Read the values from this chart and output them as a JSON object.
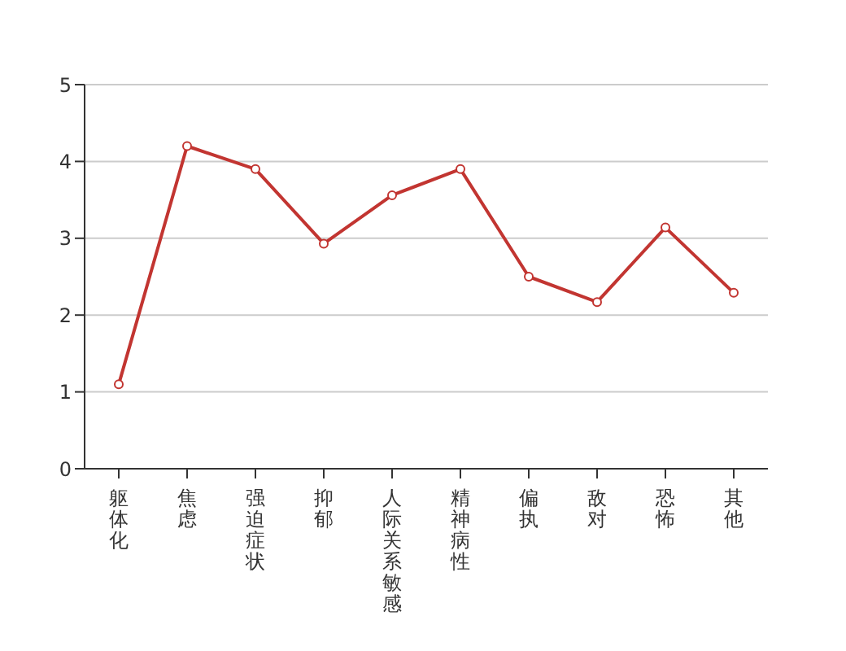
{
  "chart_data": {
    "type": "line",
    "categories": [
      "躯体化",
      "焦虑",
      "强迫症状",
      "抑郁",
      "人际关系敏感",
      "精神病性",
      "偏执",
      "敌对",
      "恐怖",
      "其他"
    ],
    "series": [
      {
        "color": "#c23531",
        "values": [
          1.1,
          4.2,
          3.9,
          2.93,
          3.56,
          3.9,
          2.5,
          2.17,
          3.14,
          2.29
        ]
      }
    ],
    "ylim": [
      0,
      5
    ],
    "yticks": [
      0,
      1,
      2,
      3,
      4,
      5
    ],
    "grid": "y",
    "marker": "circle",
    "line_style": "solid"
  }
}
